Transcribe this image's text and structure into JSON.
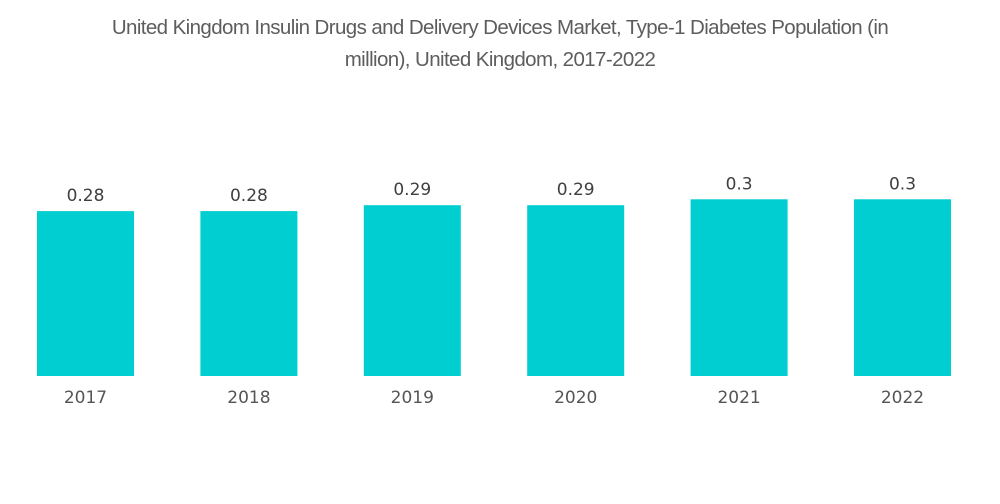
{
  "chart_data": {
    "type": "bar",
    "title": "United Kingdom Insulin Drugs and Delivery Devices Market, Type-1 Diabetes Population (in million), United Kingdom, 2017-2022",
    "title_lines": [
      "United Kingdom Insulin Drugs and Delivery Devices Market, Type-1 Diabetes Population (in",
      "million), United Kingdom, 2017-2022"
    ],
    "xlabel": "",
    "ylabel": "",
    "categories": [
      "2017",
      "2018",
      "2019",
      "2020",
      "2021",
      "2022"
    ],
    "values": [
      0.28,
      0.28,
      0.29,
      0.29,
      0.3,
      0.3
    ],
    "value_labels": [
      "0.28",
      "0.28",
      "0.29",
      "0.29",
      "0.3",
      "0.3"
    ],
    "ylim": [
      0,
      0.3
    ],
    "grid": false,
    "legend": "none",
    "bar_color": "#00CED1"
  }
}
